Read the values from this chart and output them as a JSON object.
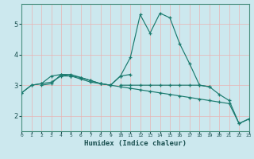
{
  "xlabel": "Humidex (Indice chaleur)",
  "bg_color": "#cce8ee",
  "grid_color_v": "#e8b4b4",
  "grid_color_h": "#e8b4b4",
  "line_color": "#1a7a6e",
  "xlim": [
    0,
    23
  ],
  "ylim": [
    1.5,
    5.65
  ],
  "yticks": [
    2,
    3,
    4,
    5
  ],
  "xticks": [
    0,
    1,
    2,
    3,
    4,
    5,
    6,
    7,
    8,
    9,
    10,
    11,
    12,
    13,
    14,
    15,
    16,
    17,
    18,
    19,
    20,
    21,
    22,
    23
  ],
  "lines": [
    {
      "x": [
        0,
        1,
        2,
        3,
        4,
        5,
        6,
        7,
        8,
        9,
        10,
        11,
        12,
        13,
        14,
        15,
        16,
        17,
        18,
        19
      ],
      "y": [
        2.75,
        3.0,
        3.05,
        3.1,
        3.3,
        3.3,
        3.2,
        3.1,
        3.05,
        3.0,
        3.3,
        3.9,
        5.3,
        4.7,
        5.35,
        5.2,
        4.35,
        3.7,
        3.0,
        2.95
      ]
    },
    {
      "x": [
        2,
        3,
        4,
        5,
        6,
        7,
        8,
        9,
        10,
        11
      ],
      "y": [
        3.0,
        3.05,
        3.35,
        3.3,
        3.25,
        3.15,
        3.05,
        3.0,
        3.3,
        3.35
      ]
    },
    {
      "x": [
        0,
        1,
        2,
        3,
        4,
        5,
        6,
        7,
        8,
        9,
        10,
        11,
        12,
        13,
        14,
        15,
        16,
        17,
        18,
        19,
        20,
        21,
        22,
        23
      ],
      "y": [
        2.75,
        3.0,
        3.05,
        3.3,
        3.35,
        3.35,
        3.25,
        3.15,
        3.05,
        3.0,
        2.95,
        2.9,
        2.85,
        2.8,
        2.75,
        2.7,
        2.65,
        2.6,
        2.55,
        2.5,
        2.45,
        2.4,
        1.75,
        1.9
      ]
    },
    {
      "x": [
        10,
        11,
        12,
        13,
        14,
        15,
        16,
        17,
        18,
        19,
        20,
        21,
        22,
        23
      ],
      "y": [
        3.0,
        3.0,
        3.0,
        3.0,
        3.0,
        3.0,
        3.0,
        3.0,
        3.0,
        2.95,
        2.7,
        2.5,
        1.75,
        1.9
      ]
    }
  ]
}
